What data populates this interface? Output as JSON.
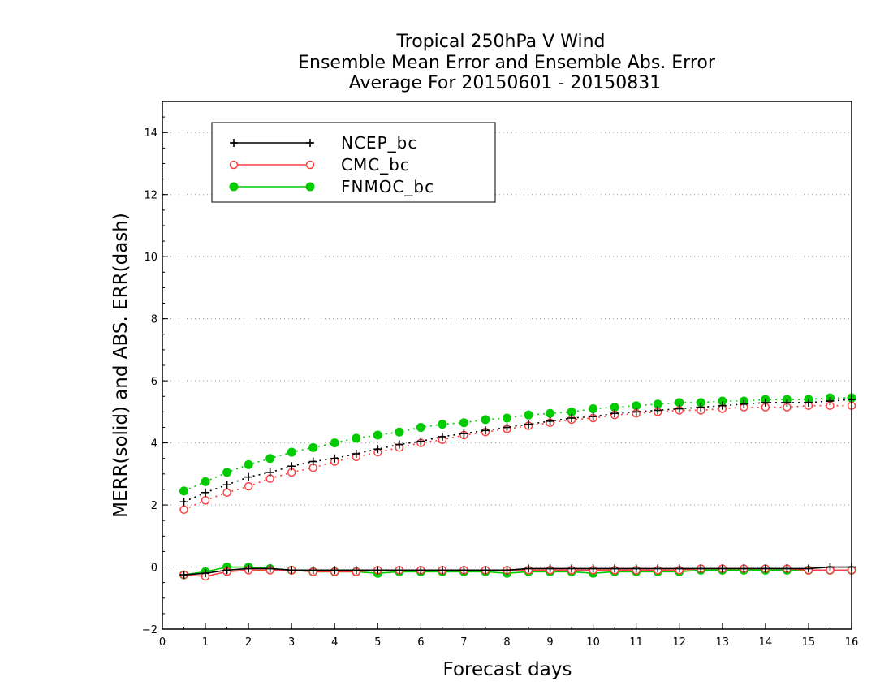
{
  "chart_data": {
    "type": "line",
    "title_lines": [
      "Tropical 250hPa V Wind",
      "Ensemble Mean Error and Ensemble Abs. Error",
      "Average For 20150601 - 20150831"
    ],
    "xlabel": "Forecast days",
    "ylabel": "MERR(solid) and ABS. ERR(dash)",
    "xlim": [
      0,
      16
    ],
    "ylim": [
      -2,
      15
    ],
    "x_ticks": [
      "0",
      "1",
      "2",
      "3",
      "4",
      "5",
      "6",
      "7",
      "8",
      "9",
      "10",
      "11",
      "12",
      "13",
      "14",
      "15",
      "16"
    ],
    "y_ticks": [
      "−2",
      "0",
      "2",
      "4",
      "6",
      "8",
      "10",
      "12",
      "14"
    ],
    "grid": "horizontal dotted",
    "legend_position": "top-left",
    "x": [
      0.5,
      1,
      1.5,
      2,
      2.5,
      3,
      3.5,
      4,
      4.5,
      5,
      5.5,
      6,
      6.5,
      7,
      7.5,
      8,
      8.5,
      9,
      9.5,
      10,
      10.5,
      11,
      11.5,
      12,
      12.5,
      13,
      13.5,
      14,
      14.5,
      15,
      15.5,
      16
    ],
    "series": [
      {
        "name": "NCEP_bc",
        "color": "#000000",
        "marker": "plus",
        "merr": [
          -0.25,
          -0.2,
          -0.1,
          -0.05,
          -0.05,
          -0.1,
          -0.1,
          -0.1,
          -0.1,
          -0.1,
          -0.1,
          -0.1,
          -0.1,
          -0.1,
          -0.1,
          -0.1,
          -0.05,
          -0.05,
          -0.05,
          -0.05,
          -0.05,
          -0.05,
          -0.05,
          -0.05,
          -0.05,
          -0.05,
          -0.05,
          -0.05,
          -0.05,
          -0.05,
          0.0,
          0.0
        ],
        "abs_err": [
          2.1,
          2.4,
          2.65,
          2.9,
          3.05,
          3.25,
          3.4,
          3.5,
          3.65,
          3.8,
          3.95,
          4.05,
          4.2,
          4.3,
          4.4,
          4.5,
          4.6,
          4.7,
          4.8,
          4.85,
          4.95,
          5.0,
          5.05,
          5.1,
          5.15,
          5.2,
          5.25,
          5.3,
          5.3,
          5.3,
          5.35,
          5.4
        ]
      },
      {
        "name": "CMC_bc",
        "color": "#ff4040",
        "marker": "open-circle",
        "merr": [
          -0.25,
          -0.3,
          -0.15,
          -0.1,
          -0.1,
          -0.1,
          -0.15,
          -0.15,
          -0.15,
          -0.1,
          -0.1,
          -0.1,
          -0.1,
          -0.1,
          -0.1,
          -0.1,
          -0.1,
          -0.1,
          -0.1,
          -0.1,
          -0.1,
          -0.1,
          -0.1,
          -0.1,
          -0.05,
          -0.05,
          -0.05,
          -0.05,
          -0.05,
          -0.1,
          -0.1,
          -0.1
        ],
        "abs_err": [
          1.85,
          2.15,
          2.4,
          2.6,
          2.85,
          3.05,
          3.2,
          3.4,
          3.55,
          3.7,
          3.85,
          4.0,
          4.1,
          4.25,
          4.35,
          4.45,
          4.55,
          4.65,
          4.75,
          4.8,
          4.9,
          4.95,
          5.0,
          5.05,
          5.05,
          5.1,
          5.15,
          5.15,
          5.15,
          5.2,
          5.2,
          5.2
        ]
      },
      {
        "name": "FNMOC_bc",
        "color": "#00cc00",
        "marker": "filled-circle",
        "merr": [
          -0.25,
          -0.15,
          0.0,
          0.0,
          -0.05,
          -0.1,
          -0.15,
          -0.15,
          -0.15,
          -0.2,
          -0.15,
          -0.15,
          -0.15,
          -0.15,
          -0.15,
          -0.2,
          -0.15,
          -0.15,
          -0.15,
          -0.2,
          -0.15,
          -0.15,
          -0.15,
          -0.15,
          -0.1,
          -0.1,
          -0.1,
          -0.1,
          -0.1,
          -0.1,
          -0.1,
          -0.1
        ],
        "abs_err": [
          2.45,
          2.75,
          3.05,
          3.3,
          3.5,
          3.7,
          3.85,
          4.0,
          4.15,
          4.25,
          4.35,
          4.5,
          4.6,
          4.65,
          4.75,
          4.8,
          4.9,
          4.95,
          5.0,
          5.1,
          5.15,
          5.2,
          5.25,
          5.3,
          5.3,
          5.35,
          5.35,
          5.4,
          5.4,
          5.4,
          5.45,
          5.45
        ]
      }
    ]
  }
}
